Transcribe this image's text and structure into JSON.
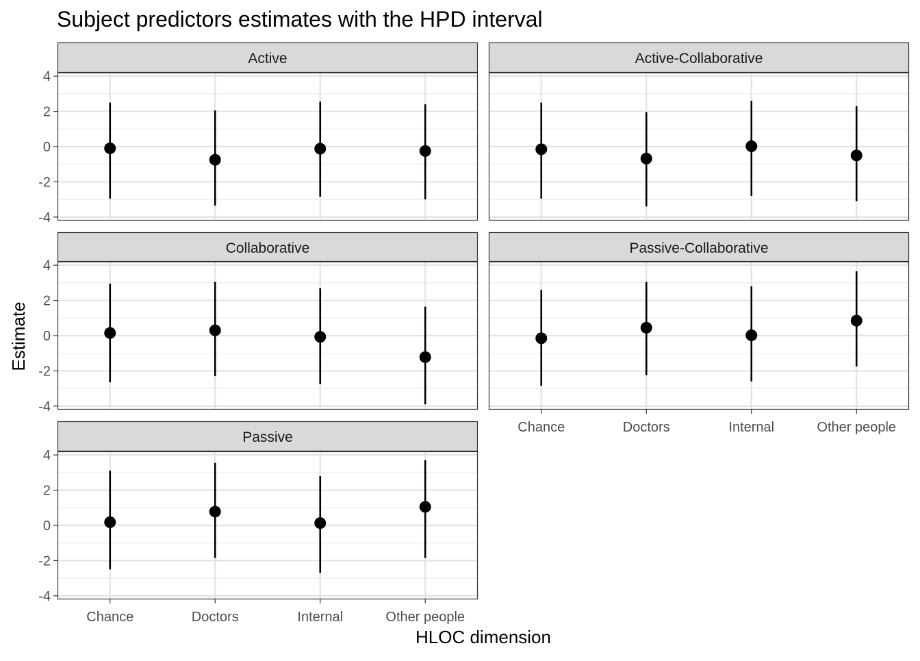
{
  "chart_data": {
    "type": "scatter",
    "title": "Subject predictors estimates with the HPD interval",
    "xlabel": "HLOC dimension",
    "ylabel": "Estimate",
    "categories": [
      "Chance",
      "Doctors",
      "Internal",
      "Other people"
    ],
    "ylim": [
      -4.2,
      4.2
    ],
    "y_ticks": [
      4,
      2,
      0,
      -2,
      -4
    ],
    "y_tick_labels": [
      "4",
      "2",
      "0",
      "-2",
      "-4"
    ],
    "grid": true,
    "facets": [
      {
        "label": "Active",
        "estimate": [
          -0.1,
          -0.75,
          -0.12,
          -0.25
        ],
        "lower": [
          -2.95,
          -3.35,
          -2.85,
          -3.0
        ],
        "upper": [
          2.5,
          2.05,
          2.55,
          2.4
        ]
      },
      {
        "label": "Active-Collaborative",
        "estimate": [
          -0.15,
          -0.68,
          0.02,
          -0.5
        ],
        "lower": [
          -2.95,
          -3.4,
          -2.8,
          -3.1
        ],
        "upper": [
          2.5,
          1.95,
          2.6,
          2.3
        ]
      },
      {
        "label": "Collaborative",
        "estimate": [
          0.15,
          0.3,
          -0.07,
          -1.22
        ],
        "lower": [
          -2.65,
          -2.3,
          -2.75,
          -3.9
        ],
        "upper": [
          2.95,
          3.05,
          2.7,
          1.65
        ]
      },
      {
        "label": "Passive-Collaborative",
        "estimate": [
          -0.15,
          0.45,
          0.02,
          0.85
        ],
        "lower": [
          -2.85,
          -2.25,
          -2.6,
          -1.75
        ],
        "upper": [
          2.6,
          3.05,
          2.8,
          3.65
        ]
      },
      {
        "label": "Passive",
        "estimate": [
          0.18,
          0.78,
          0.13,
          1.05
        ],
        "lower": [
          -2.5,
          -1.85,
          -2.7,
          -1.85
        ],
        "upper": [
          3.1,
          3.55,
          2.8,
          3.7
        ]
      }
    ]
  }
}
